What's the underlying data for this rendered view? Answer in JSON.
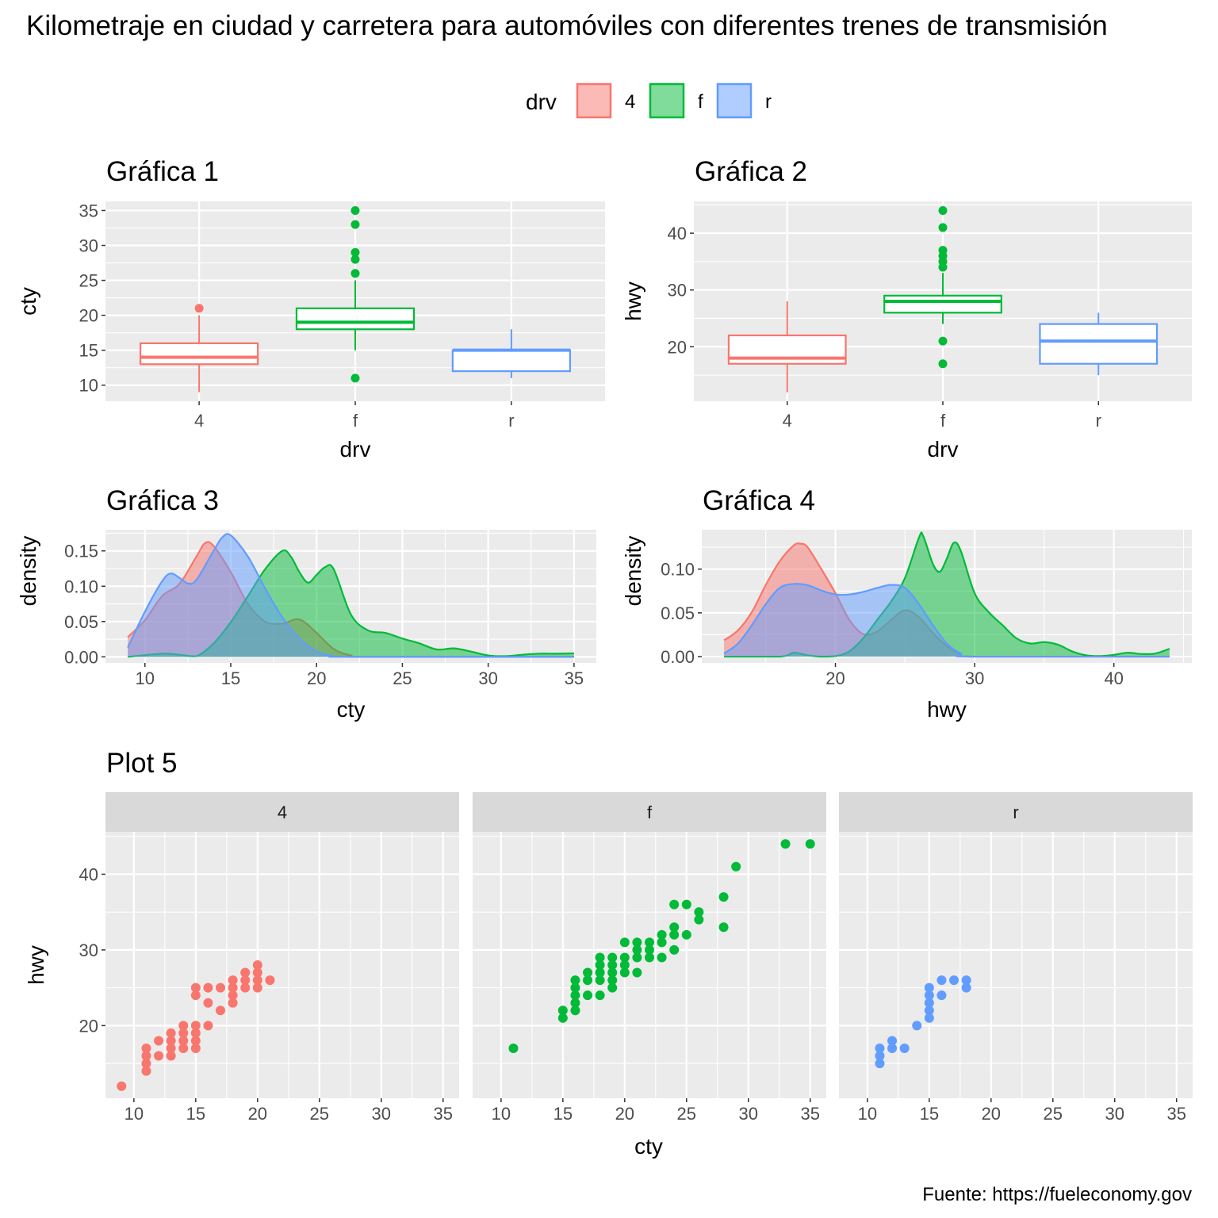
{
  "title": "Kilometraje en ciudad y carretera para automóviles con diferentes trenes de transmisión",
  "caption": "Fuente: https://fueleconomy.gov",
  "colors": {
    "4": "#F8766D",
    "f": "#00BA38",
    "r": "#619CFF"
  },
  "legend": {
    "title": "drv",
    "placement": "top",
    "items": [
      "4",
      "f",
      "r"
    ]
  },
  "chart_data": [
    {
      "type": "boxplot",
      "title": "Gráfica 1",
      "xlabel": "drv",
      "ylabel": "cty",
      "categories": [
        "4",
        "f",
        "r"
      ],
      "yticks": [
        10,
        15,
        20,
        25,
        30,
        35
      ],
      "ylim": [
        7.7,
        36.3
      ],
      "boxes": [
        {
          "group": "4",
          "lower": 9,
          "q1": 13,
          "median": 14,
          "q3": 16,
          "upper": 20,
          "outliers": [
            21
          ]
        },
        {
          "group": "f",
          "lower": 15,
          "q1": 18,
          "median": 19,
          "q3": 21,
          "upper": 25,
          "outliers": [
            11,
            26,
            28,
            29,
            33,
            35
          ]
        },
        {
          "group": "r",
          "lower": 11,
          "q1": 12,
          "median": 15,
          "q3": 15,
          "upper": 18,
          "outliers": []
        }
      ]
    },
    {
      "type": "boxplot",
      "title": "Gráfica 2",
      "xlabel": "drv",
      "ylabel": "hwy",
      "categories": [
        "4",
        "f",
        "r"
      ],
      "yticks": [
        20,
        30,
        40
      ],
      "ylim": [
        10.4,
        45.6
      ],
      "boxes": [
        {
          "group": "4",
          "lower": 12,
          "q1": 17,
          "median": 18,
          "q3": 22,
          "upper": 28,
          "outliers": []
        },
        {
          "group": "f",
          "lower": 24,
          "q1": 26,
          "median": 28,
          "q3": 29,
          "upper": 33,
          "outliers": [
            17,
            21,
            34,
            35,
            36,
            37,
            41,
            44
          ]
        },
        {
          "group": "r",
          "lower": 15,
          "q1": 17,
          "median": 21,
          "q3": 24,
          "upper": 26,
          "outliers": []
        }
      ]
    },
    {
      "type": "area",
      "title": "Gráfica 3",
      "xlabel": "cty",
      "ylabel": "density",
      "xticks": [
        10,
        15,
        20,
        25,
        30,
        35
      ],
      "yticks": [
        0.0,
        0.05,
        0.1,
        0.15
      ],
      "ytick_labels": [
        "0.00",
        "0.05",
        "0.10",
        "0.15"
      ],
      "xlim": [
        7.7,
        36.3
      ],
      "ylim": [
        -0.0086,
        0.18
      ],
      "series": [
        {
          "group": "4",
          "x": [
            9,
            10,
            11,
            12,
            13,
            13.5,
            14,
            15,
            16,
            17,
            18,
            19,
            20,
            21,
            22,
            23,
            35
          ],
          "y": [
            0.028,
            0.052,
            0.086,
            0.103,
            0.142,
            0.161,
            0.157,
            0.12,
            0.075,
            0.05,
            0.047,
            0.053,
            0.034,
            0.011,
            0.002,
            0,
            0
          ]
        },
        {
          "group": "f",
          "x": [
            9,
            11,
            12,
            13,
            14,
            15,
            16,
            17,
            18,
            18.5,
            19,
            19.5,
            20,
            20.5,
            21,
            22,
            23,
            24,
            25,
            26,
            27,
            28,
            29,
            30,
            31,
            32,
            33,
            34,
            35
          ],
          "y": [
            0,
            0.0045,
            0.003,
            0.001,
            0.019,
            0.049,
            0.086,
            0.124,
            0.15,
            0.142,
            0.12,
            0.105,
            0.116,
            0.127,
            0.124,
            0.06,
            0.0375,
            0.034,
            0.026,
            0.019,
            0.0105,
            0.012,
            0.0075,
            0.002,
            0.001,
            0.003,
            0.0045,
            0.0045,
            0.005
          ]
        },
        {
          "group": "r",
          "x": [
            9,
            10,
            11,
            11.5,
            12,
            12.5,
            13,
            14,
            14.5,
            15,
            16,
            17,
            18,
            19,
            20,
            21,
            22,
            35
          ],
          "y": [
            0.013,
            0.064,
            0.107,
            0.118,
            0.112,
            0.104,
            0.109,
            0.15,
            0.169,
            0.172,
            0.142,
            0.097,
            0.056,
            0.026,
            0.0075,
            0.001,
            0,
            0
          ]
        }
      ]
    },
    {
      "type": "area",
      "title": "Gráfica 4",
      "xlabel": "hwy",
      "ylabel": "density",
      "xticks": [
        20,
        30,
        40
      ],
      "yticks": [
        0.0,
        0.05,
        0.1
      ],
      "ytick_labels": [
        "0.00",
        "0.05",
        "0.10"
      ],
      "xlim": [
        10.4,
        45.6
      ],
      "ylim": [
        -0.0072,
        0.145
      ],
      "series": [
        {
          "group": "4",
          "x": [
            12,
            13,
            14,
            15,
            16,
            17,
            17.5,
            18,
            19,
            20,
            21,
            22,
            23,
            24,
            25,
            26,
            27,
            28,
            29,
            30,
            44
          ],
          "y": [
            0.0187,
            0.03,
            0.051,
            0.082,
            0.109,
            0.127,
            0.129,
            0.125,
            0.0997,
            0.0725,
            0.042,
            0.0257,
            0.0287,
            0.042,
            0.053,
            0.045,
            0.027,
            0.012,
            0.003,
            0,
            0
          ]
        },
        {
          "group": "f",
          "x": [
            12,
            16,
            17,
            18,
            19,
            20,
            21,
            22,
            23,
            24,
            25,
            26,
            26.3,
            27,
            27.5,
            28,
            28.5,
            29,
            30,
            31,
            32,
            33,
            34,
            35,
            36,
            37,
            38,
            39,
            40,
            41,
            42,
            43,
            44
          ],
          "y": [
            0,
            0,
            0.0045,
            0.0015,
            0,
            0.0006,
            0.006,
            0.021,
            0.042,
            0.063,
            0.09,
            0.136,
            0.138,
            0.106,
            0.097,
            0.112,
            0.13,
            0.121,
            0.0725,
            0.051,
            0.036,
            0.021,
            0.015,
            0.0166,
            0.0136,
            0.006,
            0.0015,
            0.0006,
            0.002,
            0.0045,
            0.003,
            0.0036,
            0.009
          ]
        },
        {
          "group": "r",
          "x": [
            12,
            13,
            14,
            15,
            16,
            17,
            18,
            19,
            20,
            21,
            22,
            23,
            24,
            25,
            26,
            27,
            28,
            29,
            30,
            44
          ],
          "y": [
            0.0036,
            0.015,
            0.036,
            0.06,
            0.0785,
            0.083,
            0.0816,
            0.0755,
            0.071,
            0.071,
            0.074,
            0.0785,
            0.082,
            0.0785,
            0.06,
            0.036,
            0.015,
            0.0036,
            0,
            0
          ]
        }
      ]
    },
    {
      "type": "scatter",
      "title": "Plot 5",
      "xlabel": "cty",
      "ylabel": "hwy",
      "facets": [
        "4",
        "f",
        "r"
      ],
      "xticks": [
        10,
        15,
        20,
        25,
        30,
        35
      ],
      "yticks": [
        20,
        30,
        40
      ],
      "xlim": [
        7.7,
        36.3
      ],
      "ylim": [
        10.4,
        45.6
      ],
      "points": {
        "4": [
          [
            9,
            12
          ],
          [
            11,
            17
          ],
          [
            11,
            16
          ],
          [
            11,
            15
          ],
          [
            11,
            14
          ],
          [
            12,
            18
          ],
          [
            12,
            16
          ],
          [
            13,
            19
          ],
          [
            13,
            18
          ],
          [
            13,
            17
          ],
          [
            13,
            16
          ],
          [
            14,
            20
          ],
          [
            14,
            19
          ],
          [
            14,
            18
          ],
          [
            14,
            17
          ],
          [
            15,
            20
          ],
          [
            15,
            19
          ],
          [
            15,
            18
          ],
          [
            15,
            17
          ],
          [
            15,
            25
          ],
          [
            15,
            24
          ],
          [
            16,
            20
          ],
          [
            16,
            25
          ],
          [
            16,
            23
          ],
          [
            17,
            25
          ],
          [
            17,
            22
          ],
          [
            18,
            26
          ],
          [
            18,
            25
          ],
          [
            18,
            24
          ],
          [
            18,
            23
          ],
          [
            19,
            27
          ],
          [
            19,
            26
          ],
          [
            19,
            25
          ],
          [
            20,
            28
          ],
          [
            20,
            27
          ],
          [
            20,
            26
          ],
          [
            20,
            25
          ],
          [
            21,
            26
          ]
        ],
        "f": [
          [
            11,
            17
          ],
          [
            15,
            22
          ],
          [
            15,
            21
          ],
          [
            16,
            26
          ],
          [
            16,
            25
          ],
          [
            16,
            24
          ],
          [
            16,
            23
          ],
          [
            16,
            22
          ],
          [
            17,
            27
          ],
          [
            17,
            26
          ],
          [
            17,
            24
          ],
          [
            18,
            29
          ],
          [
            18,
            28
          ],
          [
            18,
            27
          ],
          [
            18,
            26
          ],
          [
            18,
            24
          ],
          [
            19,
            29
          ],
          [
            19,
            28
          ],
          [
            19,
            27
          ],
          [
            19,
            26
          ],
          [
            19,
            25
          ],
          [
            20,
            31
          ],
          [
            20,
            29
          ],
          [
            20,
            28
          ],
          [
            20,
            27
          ],
          [
            21,
            31
          ],
          [
            21,
            30
          ],
          [
            21,
            29
          ],
          [
            21,
            27
          ],
          [
            22,
            31
          ],
          [
            22,
            30
          ],
          [
            22,
            29
          ],
          [
            23,
            32
          ],
          [
            23,
            31
          ],
          [
            23,
            29
          ],
          [
            24,
            36
          ],
          [
            24,
            33
          ],
          [
            24,
            32
          ],
          [
            24,
            30
          ],
          [
            25,
            36
          ],
          [
            25,
            32
          ],
          [
            26,
            35
          ],
          [
            26,
            34
          ],
          [
            28,
            37
          ],
          [
            28,
            33
          ],
          [
            29,
            41
          ],
          [
            33,
            44
          ],
          [
            35,
            44
          ]
        ],
        "r": [
          [
            11,
            17
          ],
          [
            11,
            16
          ],
          [
            11,
            15
          ],
          [
            12,
            18
          ],
          [
            12,
            17
          ],
          [
            13,
            17
          ],
          [
            14,
            20
          ],
          [
            15,
            25
          ],
          [
            15,
            24
          ],
          [
            15,
            23
          ],
          [
            15,
            22
          ],
          [
            15,
            21
          ],
          [
            16,
            26
          ],
          [
            16,
            24
          ],
          [
            17,
            26
          ],
          [
            18,
            26
          ],
          [
            18,
            25
          ]
        ]
      }
    }
  ]
}
